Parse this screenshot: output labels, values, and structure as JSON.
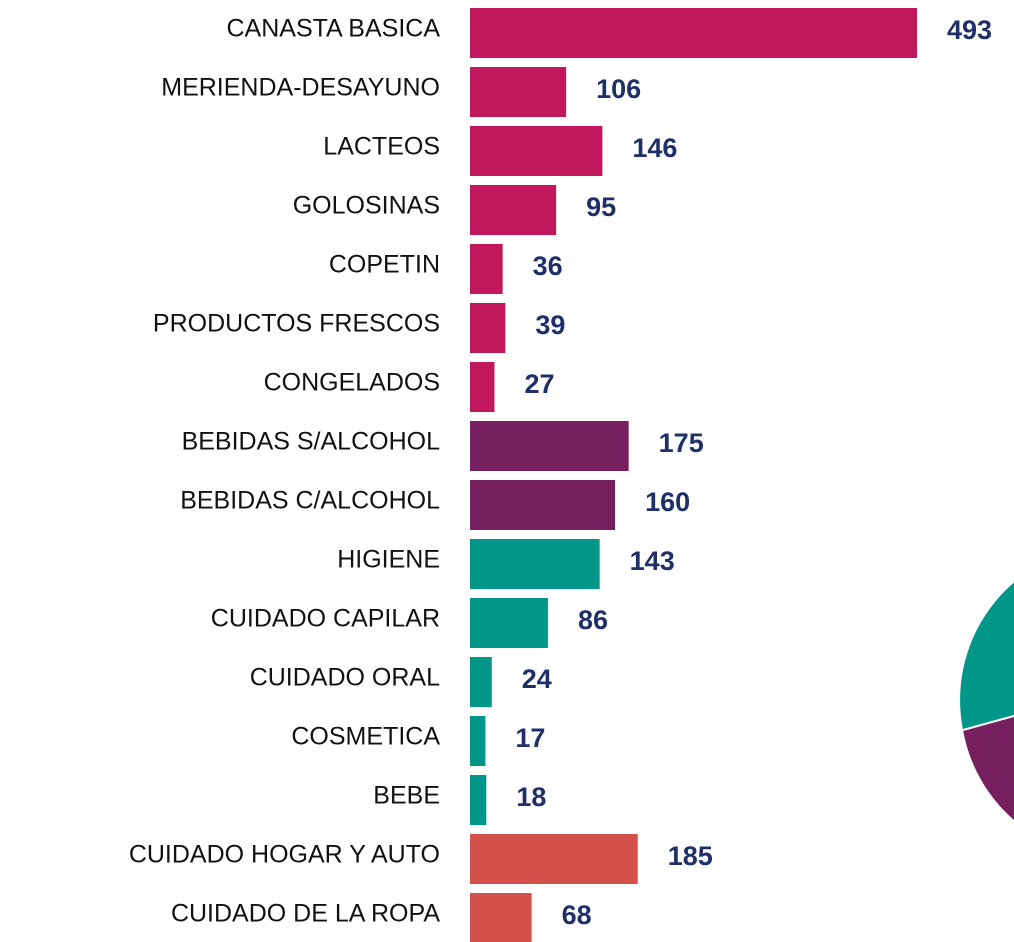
{
  "chart_data": {
    "type": "bar",
    "orientation": "horizontal",
    "categories": [
      "CANASTA BASICA",
      "MERIENDA-DESAYUNO",
      "LACTEOS",
      "GOLOSINAS",
      "COPETIN",
      "PRODUCTOS FRESCOS",
      "CONGELADOS",
      "BEBIDAS S/ALCOHOL",
      "BEBIDAS C/ALCOHOL",
      "HIGIENE",
      "CUIDADO CAPILAR",
      "CUIDADO ORAL",
      "COSMETICA",
      "BEBE",
      "CUIDADO HOGAR Y AUTO",
      "CUIDADO DE LA ROPA"
    ],
    "values": [
      493,
      106,
      146,
      95,
      36,
      39,
      27,
      175,
      160,
      143,
      86,
      24,
      17,
      18,
      185,
      68
    ],
    "colors": [
      "#c0175d",
      "#c0175d",
      "#c0175d",
      "#c0175d",
      "#c0175d",
      "#c0175d",
      "#c0175d",
      "#76205f",
      "#76205f",
      "#00978a",
      "#00978a",
      "#00978a",
      "#00978a",
      "#00978a",
      "#d4504a",
      "#d4504a"
    ]
  }
}
